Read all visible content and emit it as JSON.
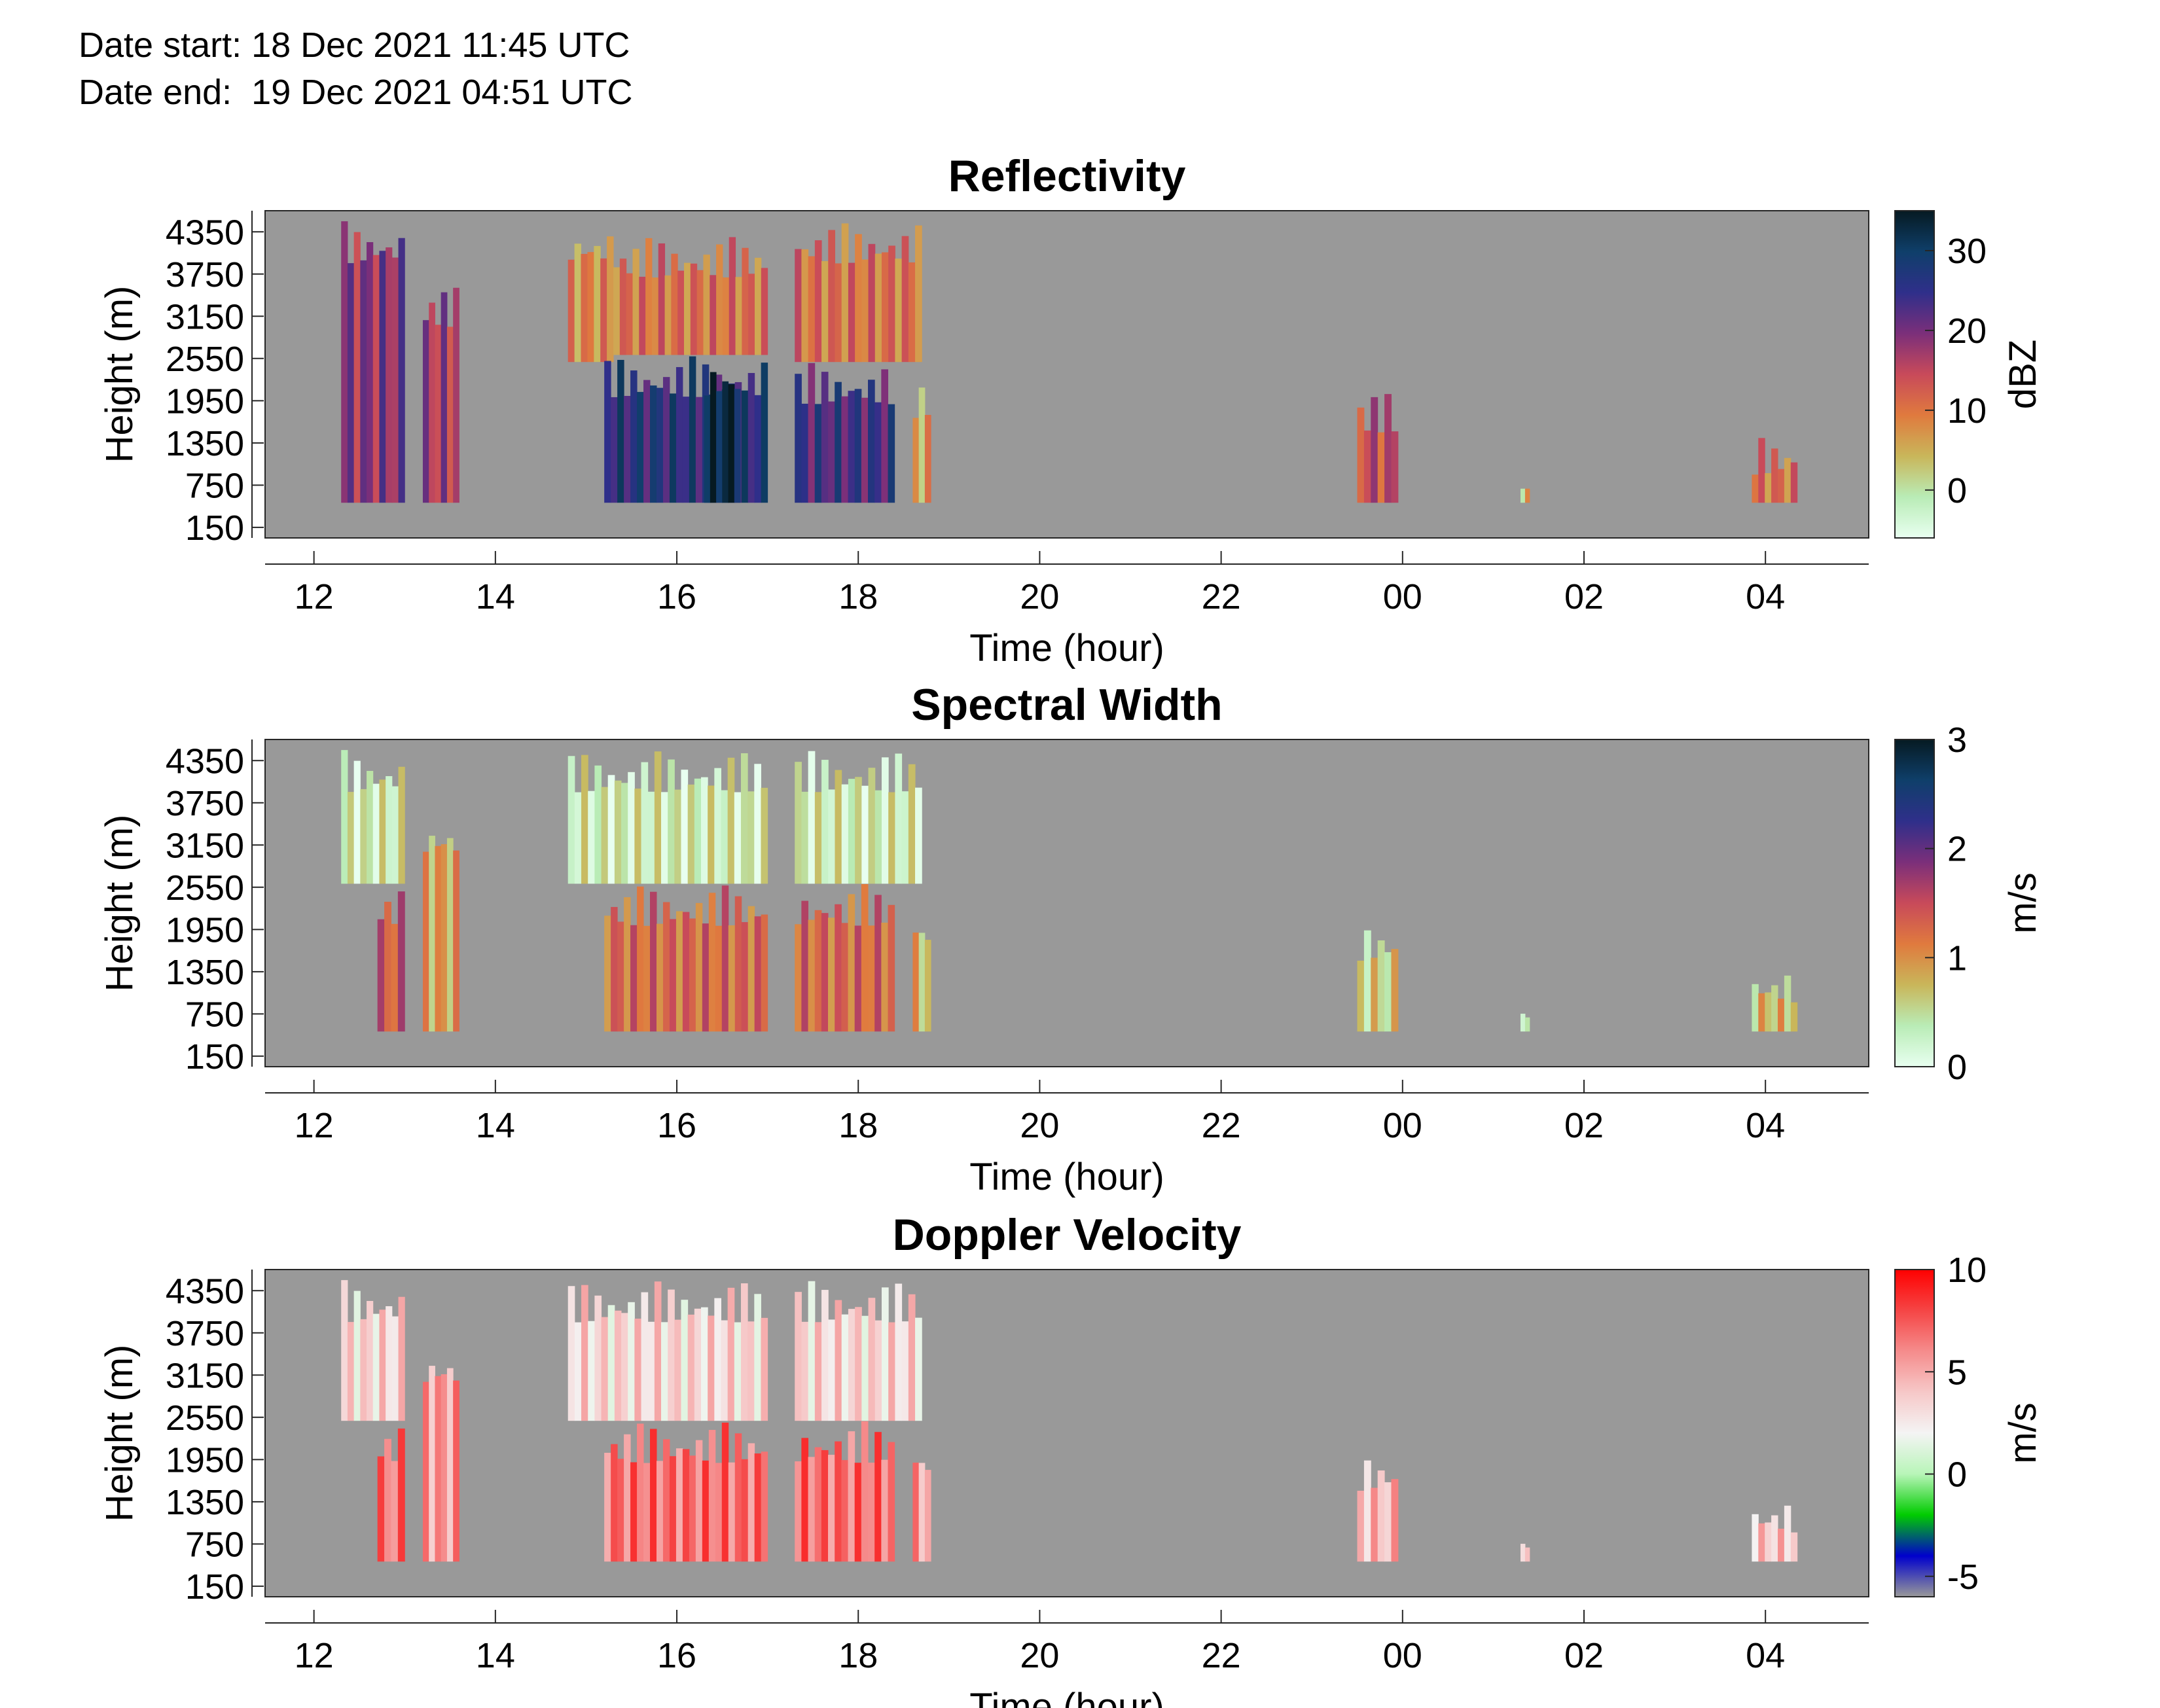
{
  "header": {
    "date_start": "Date start: 18 Dec 2021 11:45 UTC",
    "date_end": "Date end:  19 Dec 2021 04:51 UTC"
  },
  "colors": {
    "background": "#999999",
    "no_data": "#999999"
  },
  "chart_data": [
    {
      "type": "heatmap",
      "title": "Reflectivity",
      "xlabel": "Time (hour)",
      "ylabel": "Height (m)",
      "x_ticks": [
        "12",
        "14",
        "16",
        "18",
        "20",
        "22",
        "00",
        "02",
        "04"
      ],
      "y_ticks": [
        "150",
        "750",
        "1350",
        "1950",
        "2550",
        "3150",
        "3750",
        "4350"
      ],
      "colorbar": {
        "label": "dBZ",
        "ticks": [
          "0",
          "10",
          "20",
          "30"
        ],
        "range": [
          -6,
          35
        ],
        "colormap": [
          "#e8fff0",
          "#b9ecb6",
          "#c9b65a",
          "#e07a3e",
          "#c84a5a",
          "#7b2f7a",
          "#2f2f8a",
          "#0f3f6a",
          "#061a22"
        ]
      },
      "cells": [
        {
          "time_start": "12.3",
          "time_end": "13.0",
          "height_min": 500,
          "height_max": 4500,
          "level": 0.6
        },
        {
          "time_start": "13.2",
          "time_end": "13.6",
          "height_min": 500,
          "height_max": 3600,
          "level": 0.55
        },
        {
          "time_start": "14.8",
          "time_end": "15.3",
          "height_min": 2500,
          "height_max": 4500,
          "level": 0.35
        },
        {
          "time_start": "15.2",
          "time_end": "17.0",
          "height_min": 500,
          "height_max": 2600,
          "level": 0.78
        },
        {
          "time_start": "15.3",
          "time_end": "17.0",
          "height_min": 2600,
          "height_max": 4300,
          "level": 0.4
        },
        {
          "time_start": "16.3",
          "time_end": "16.7",
          "height_min": 500,
          "height_max": 2600,
          "level": 0.95
        },
        {
          "time_start": "17.3",
          "time_end": "18.4",
          "height_min": 500,
          "height_max": 2500,
          "level": 0.72
        },
        {
          "time_start": "17.3",
          "time_end": "18.7",
          "height_min": 2500,
          "height_max": 4500,
          "level": 0.4
        },
        {
          "time_start": "18.6",
          "time_end": "18.8",
          "height_min": 500,
          "height_max": 2300,
          "level": 0.3
        },
        {
          "time_start": "23.5",
          "time_end": "23.95",
          "height_min": 500,
          "height_max": 2100,
          "level": 0.5
        },
        {
          "time_start": "25.3",
          "time_end": "25.4",
          "height_min": 500,
          "height_max": 1000,
          "level": 0.25
        },
        {
          "time_start": "27.85",
          "time_end": "28.35",
          "height_min": 500,
          "height_max": 1500,
          "level": 0.4
        }
      ]
    },
    {
      "type": "heatmap",
      "title": "Spectral Width",
      "xlabel": "Time (hour)",
      "ylabel": "Height (m)",
      "x_ticks": [
        "12",
        "14",
        "16",
        "18",
        "20",
        "22",
        "00",
        "02",
        "04"
      ],
      "y_ticks": [
        "150",
        "750",
        "1350",
        "1950",
        "2550",
        "3150",
        "3750",
        "4350"
      ],
      "colorbar": {
        "label": "m/s",
        "ticks": [
          "0",
          "1",
          "2",
          "3"
        ],
        "range": [
          0,
          3
        ],
        "colormap": [
          "#e8fff0",
          "#b9ecb6",
          "#c9b65a",
          "#e07a3e",
          "#c84a5a",
          "#7b2f7a",
          "#2f2f8a",
          "#0f3f6a",
          "#061a22"
        ]
      },
      "cells": [
        {
          "time_start": "12.3",
          "time_end": "13.0",
          "height_min": 2600,
          "height_max": 4500,
          "level": 0.12
        },
        {
          "time_start": "12.7",
          "time_end": "13.0",
          "height_min": 500,
          "height_max": 2600,
          "level": 0.45
        },
        {
          "time_start": "13.2",
          "time_end": "13.6",
          "height_min": 500,
          "height_max": 3600,
          "level": 0.3
        },
        {
          "time_start": "14.8",
          "time_end": "17.0",
          "height_min": 2600,
          "height_max": 4500,
          "level": 0.12
        },
        {
          "time_start": "15.2",
          "time_end": "17.0",
          "height_min": 500,
          "height_max": 2600,
          "level": 0.42
        },
        {
          "time_start": "17.3",
          "time_end": "18.4",
          "height_min": 500,
          "height_max": 2600,
          "level": 0.42
        },
        {
          "time_start": "17.3",
          "time_end": "18.7",
          "height_min": 2600,
          "height_max": 4500,
          "level": 0.12
        },
        {
          "time_start": "18.6",
          "time_end": "18.8",
          "height_min": 500,
          "height_max": 2300,
          "level": 0.25
        },
        {
          "time_start": "23.5",
          "time_end": "23.95",
          "height_min": 500,
          "height_max": 2100,
          "level": 0.2
        },
        {
          "time_start": "25.3",
          "time_end": "25.4",
          "height_min": 500,
          "height_max": 1000,
          "level": 0.15
        },
        {
          "time_start": "27.85",
          "time_end": "28.35",
          "height_min": 500,
          "height_max": 1500,
          "level": 0.25
        }
      ]
    },
    {
      "type": "heatmap",
      "title": "Doppler Velocity",
      "xlabel": "Time (hour)",
      "ylabel": "Height (m)",
      "x_ticks": [
        "12",
        "14",
        "16",
        "18",
        "20",
        "22",
        "00",
        "02",
        "04"
      ],
      "y_ticks": [
        "150",
        "750",
        "1350",
        "1950",
        "2550",
        "3150",
        "3750",
        "4350"
      ],
      "colorbar": {
        "label": "m/s",
        "ticks": [
          "-5",
          "0",
          "5",
          "10"
        ],
        "range": [
          -6,
          10
        ],
        "colormap": [
          "#999999",
          "#0000cc",
          "#00cc00",
          "#b8f5b8",
          "#f4f4f4",
          "#f6c8c8",
          "#f58c8c",
          "#f54545",
          "#ff0000"
        ]
      },
      "cells": [
        {
          "time_start": "12.3",
          "time_end": "13.0",
          "height_min": 2500,
          "height_max": 4500,
          "level": 0.58
        },
        {
          "time_start": "12.7",
          "time_end": "13.0",
          "height_min": 500,
          "height_max": 2500,
          "level": 0.78
        },
        {
          "time_start": "13.2",
          "time_end": "13.6",
          "height_min": 500,
          "height_max": 3600,
          "level": 0.72
        },
        {
          "time_start": "14.8",
          "time_end": "17.0",
          "height_min": 2500,
          "height_max": 4500,
          "level": 0.58
        },
        {
          "time_start": "15.2",
          "time_end": "17.0",
          "height_min": 500,
          "height_max": 2500,
          "level": 0.8
        },
        {
          "time_start": "17.3",
          "time_end": "18.4",
          "height_min": 500,
          "height_max": 2500,
          "level": 0.8
        },
        {
          "time_start": "17.3",
          "time_end": "18.7",
          "height_min": 2500,
          "height_max": 4500,
          "level": 0.58
        },
        {
          "time_start": "18.6",
          "time_end": "18.8",
          "height_min": 500,
          "height_max": 2300,
          "level": 0.7
        },
        {
          "time_start": "23.5",
          "time_end": "23.95",
          "height_min": 500,
          "height_max": 2100,
          "level": 0.65
        },
        {
          "time_start": "25.3",
          "time_end": "25.4",
          "height_min": 500,
          "height_max": 1000,
          "level": 0.65
        },
        {
          "time_start": "27.85",
          "time_end": "28.35",
          "height_min": 500,
          "height_max": 1500,
          "level": 0.62
        }
      ]
    }
  ]
}
